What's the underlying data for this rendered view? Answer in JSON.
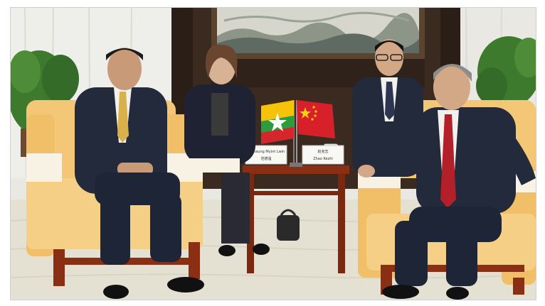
{
  "photo": {
    "placard_left": {
      "line1": "U Thaung Myint Lwin",
      "line2": "范德温"
    },
    "placard_right": {
      "line1": "赵克志",
      "line2": "Zhao Kezhi"
    }
  },
  "colors": {
    "curtain": "#e9e8e2",
    "wall": "#3a2a20",
    "carpet": "#e4e1d2",
    "sofa": "#f3c776",
    "wood": "#8a2f14",
    "suit": "#222a3c",
    "tie_red": "#b3202a",
    "flag_china": "#d8202a",
    "flag_myanmar_yellow": "#f6c30a",
    "flag_myanmar_green": "#2c9c3c",
    "flag_myanmar_red": "#d4262c"
  }
}
